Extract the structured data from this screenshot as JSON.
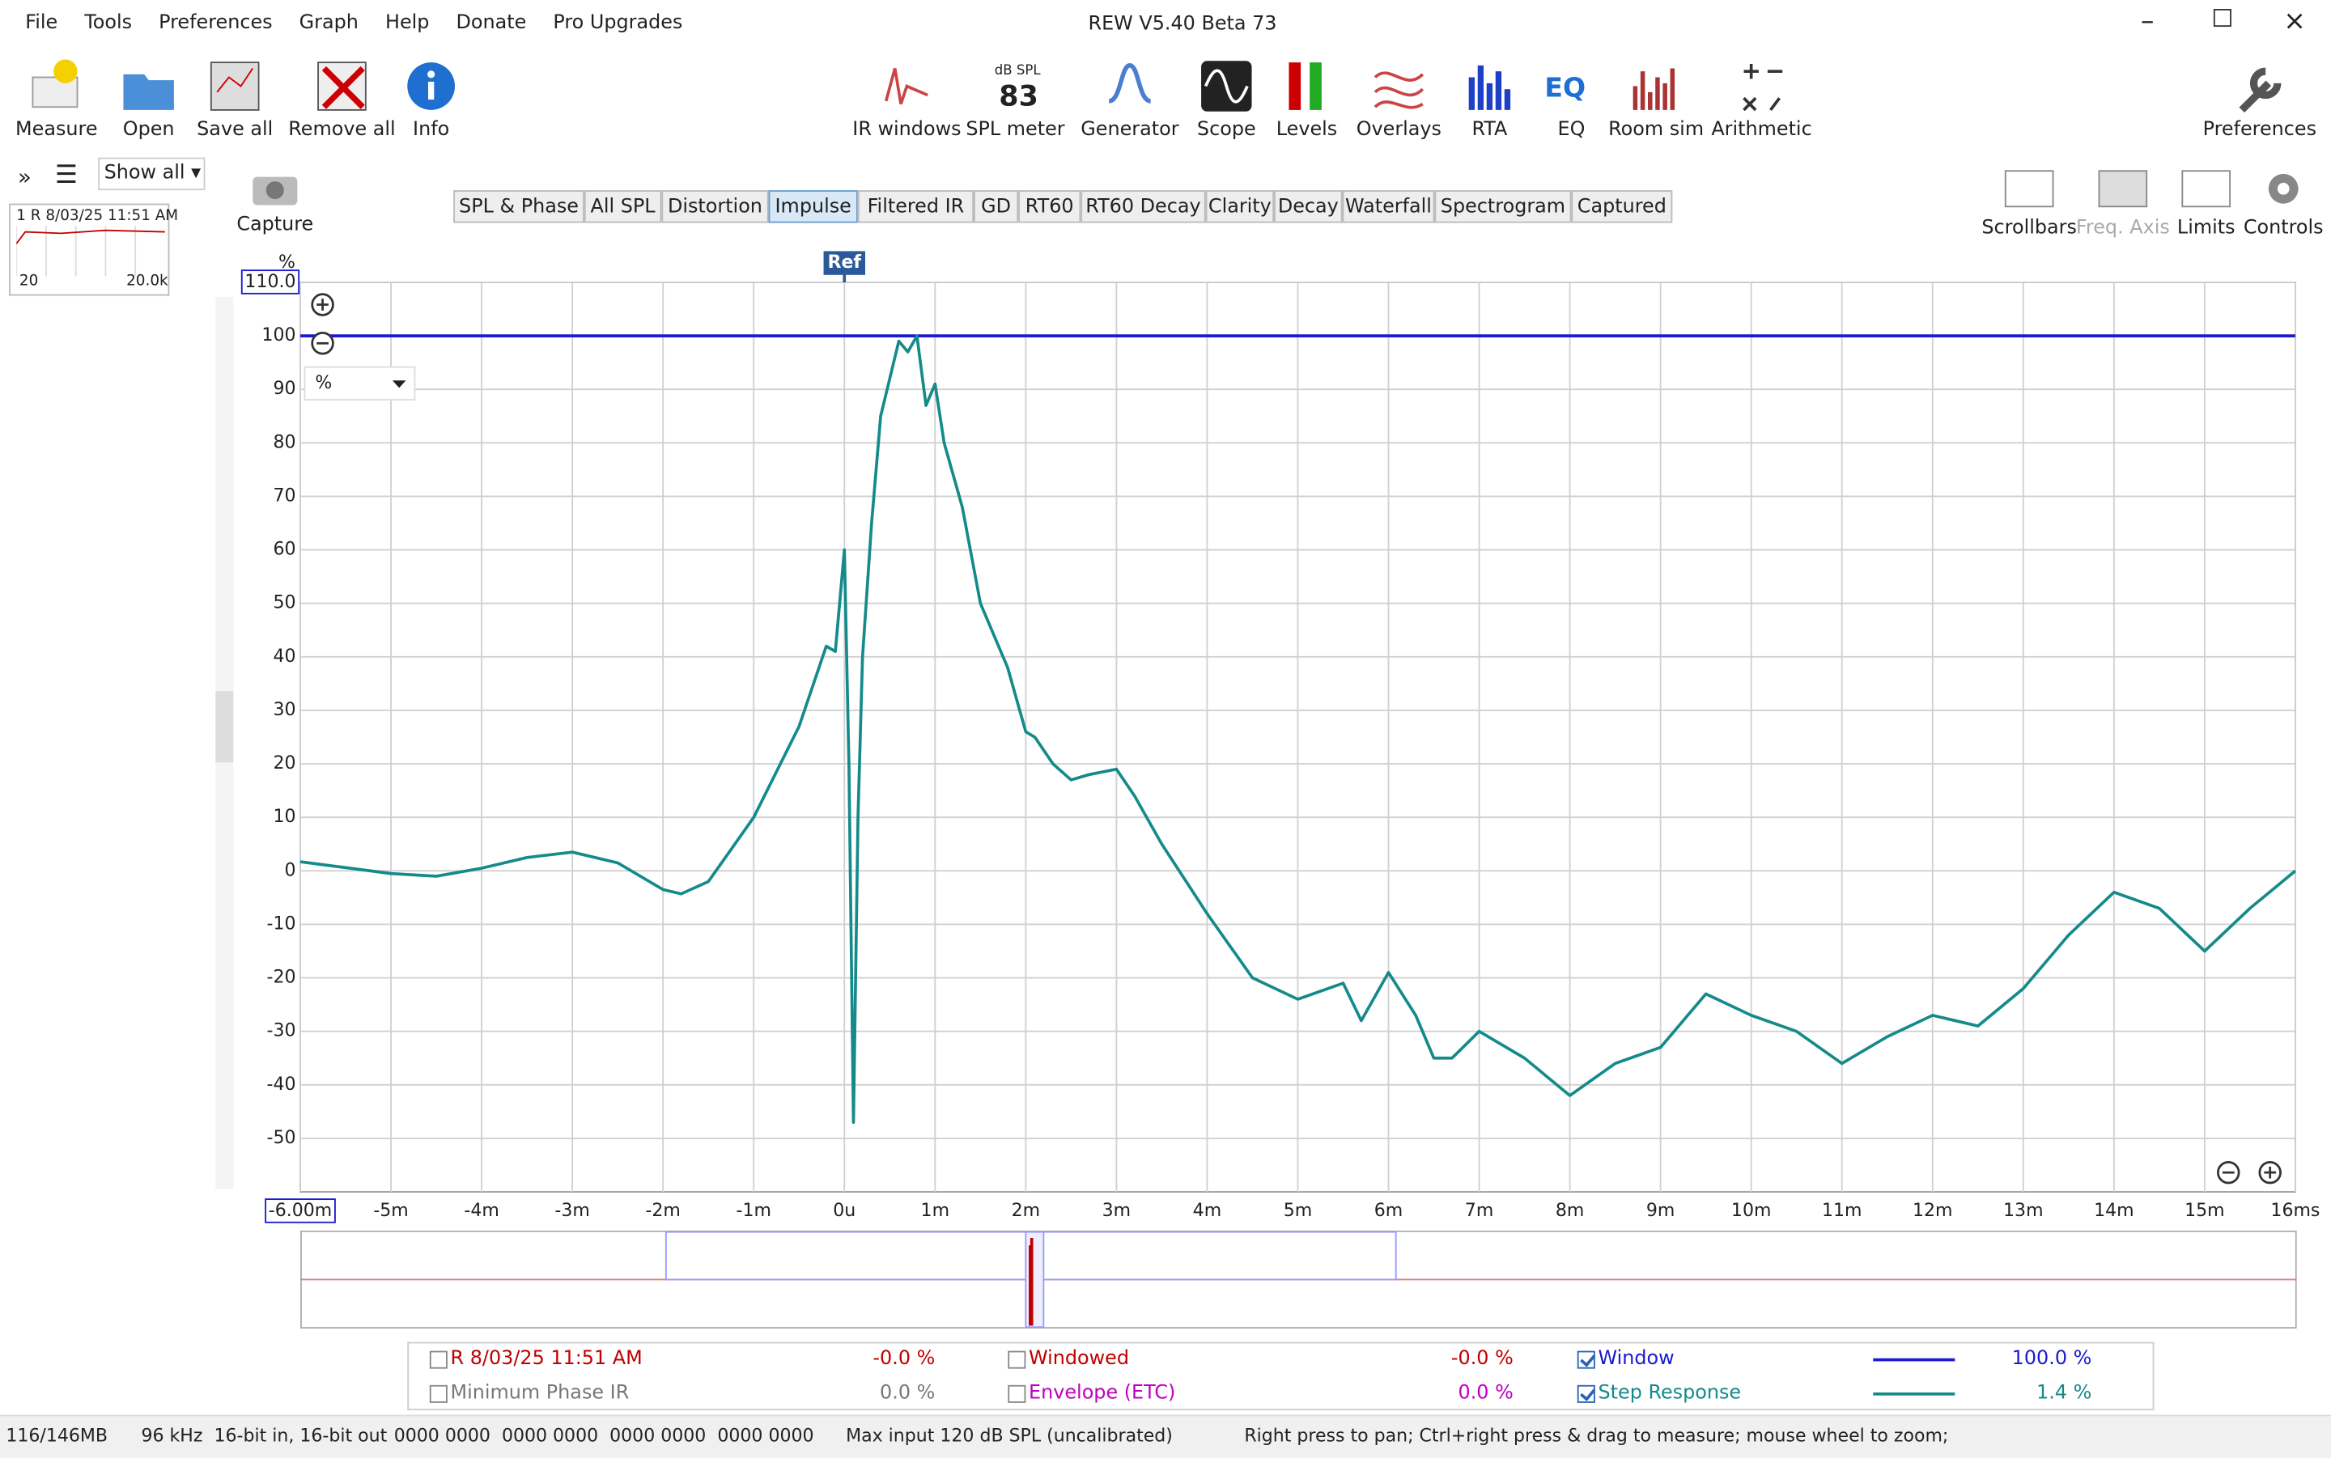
{
  "window": {
    "title": "REW V5.40 Beta 73"
  },
  "menu": [
    "File",
    "Tools",
    "Preferences",
    "Graph",
    "Help",
    "Donate",
    "Pro Upgrades"
  ],
  "toolbar_left": [
    "Measure",
    "Open",
    "Save all",
    "Remove all",
    "Info"
  ],
  "toolbar_center": [
    "IR windows",
    "SPL meter",
    "Generator",
    "Scope",
    "Levels",
    "Overlays",
    "RTA",
    "EQ",
    "Room sim",
    "Arithmetic"
  ],
  "spl_meter": {
    "unit": "dB SPL",
    "value": 83
  },
  "toolbar_right": [
    "Preferences"
  ],
  "sidebar": {
    "show_all": "Show all",
    "measurement": "1 R 8/03/25 11:51 AM",
    "thumb_min": "20",
    "thumb_max": "20.0k",
    "capture": "Capture"
  },
  "tabs": [
    "SPL & Phase",
    "All SPL",
    "Distortion",
    "Impulse",
    "Filtered IR",
    "GD",
    "RT60",
    "RT60 Decay",
    "Clarity",
    "Decay",
    "Waterfall",
    "Spectrogram",
    "Captured"
  ],
  "active_tab": 3,
  "graph_controls": [
    "Scrollbars",
    "Freq. Axis",
    "Limits",
    "Controls"
  ],
  "chart_data": {
    "type": "line",
    "y_unit": "%",
    "unit_select": "%",
    "ref_marker": {
      "label": "Ref",
      "x": 0
    },
    "xlim": [
      -6,
      16
    ],
    "ylim": [
      -60,
      110
    ],
    "grid": true,
    "xticks": [
      {
        "value": -6,
        "label": "-6.00m"
      },
      {
        "value": -5,
        "label": "-5m"
      },
      {
        "value": -4,
        "label": "-4m"
      },
      {
        "value": -3,
        "label": "-3m"
      },
      {
        "value": -2,
        "label": "-2m"
      },
      {
        "value": -1,
        "label": "-1m"
      },
      {
        "value": 0,
        "label": "0u"
      },
      {
        "value": 1,
        "label": "1m"
      },
      {
        "value": 2,
        "label": "2m"
      },
      {
        "value": 3,
        "label": "3m"
      },
      {
        "value": 4,
        "label": "4m"
      },
      {
        "value": 5,
        "label": "5m"
      },
      {
        "value": 6,
        "label": "6m"
      },
      {
        "value": 7,
        "label": "7m"
      },
      {
        "value": 8,
        "label": "8m"
      },
      {
        "value": 9,
        "label": "9m"
      },
      {
        "value": 10,
        "label": "10m"
      },
      {
        "value": 11,
        "label": "11m"
      },
      {
        "value": 12,
        "label": "12m"
      },
      {
        "value": 13,
        "label": "13m"
      },
      {
        "value": 14,
        "label": "14m"
      },
      {
        "value": 15,
        "label": "15m"
      },
      {
        "value": 16,
        "label": "16ms"
      }
    ],
    "yticks": [
      -50,
      -40,
      -30,
      -20,
      -10,
      0,
      10,
      20,
      30,
      40,
      50,
      60,
      70,
      80,
      90,
      100,
      {
        "value": 110,
        "label": "110.0"
      }
    ],
    "series": [
      {
        "name": "Window",
        "color": "#1a1ad0",
        "checked": true,
        "readout": "100.0 %",
        "x": [
          -6,
          16
        ],
        "values": [
          100,
          100
        ]
      },
      {
        "name": "Step Response",
        "color": "#158a8a",
        "checked": true,
        "readout": "1.4 %",
        "x": [
          -6,
          -5,
          -4.5,
          -4,
          -3.5,
          -3,
          -2.5,
          -2,
          -1.8,
          -1.5,
          -1,
          -0.5,
          -0.3,
          -0.2,
          -0.1,
          0,
          0.05,
          0.1,
          0.15,
          0.2,
          0.3,
          0.4,
          0.5,
          0.6,
          0.7,
          0.8,
          0.9,
          1,
          1.1,
          1.3,
          1.5,
          1.8,
          2,
          2.1,
          2.3,
          2.5,
          2.7,
          3,
          3.2,
          3.5,
          4,
          4.5,
          5,
          5.5,
          5.7,
          6,
          6.3,
          6.5,
          6.7,
          7,
          7.5,
          8,
          8.5,
          9,
          9.5,
          10,
          10.5,
          11,
          11.5,
          12,
          12.5,
          13,
          13.5,
          14,
          14.5,
          15,
          15.5,
          16
        ],
        "values": [
          1.7,
          -0.5,
          -1,
          0.5,
          2.5,
          3.5,
          1.5,
          -3.5,
          -4.3,
          -2,
          10,
          27,
          37,
          42,
          41,
          60,
          20,
          -47,
          10,
          40,
          65,
          85,
          92,
          99,
          97,
          100,
          87,
          91,
          80,
          68,
          50,
          38,
          26,
          25,
          20,
          17,
          18,
          19,
          14,
          5,
          -8,
          -20,
          -24,
          -21,
          -28,
          -19,
          -27,
          -35,
          -35,
          -30,
          -35,
          -42,
          -36,
          -33,
          -23,
          -27,
          -30,
          -36,
          -31,
          -27,
          -29,
          -22,
          -12,
          -4,
          -7,
          -15,
          -7,
          0
        ]
      }
    ]
  },
  "legend": {
    "rows": [
      {
        "name": "R 8/03/25 11:51 AM",
        "color": "#c00000",
        "checked": false,
        "readout": "-0.0 %"
      },
      {
        "name": "Minimum Phase IR",
        "color": "#777777",
        "checked": false,
        "readout": "0.0 %"
      },
      {
        "name": "Windowed",
        "color": "#c00000",
        "checked": false,
        "readout": "-0.0 %"
      },
      {
        "name": "Envelope (ETC)",
        "color": "#c000c0",
        "checked": false,
        "readout": "0.0 %"
      }
    ]
  },
  "status": [
    "116/146MB",
    "96 kHz",
    "16-bit in, 16-bit out",
    "0000 0000  0000 0000  0000 0000  0000 0000",
    "Max input 120 dB SPL (uncalibrated)",
    "Right press to pan; Ctrl+right press & drag to measure; mouse wheel to zoom;"
  ]
}
